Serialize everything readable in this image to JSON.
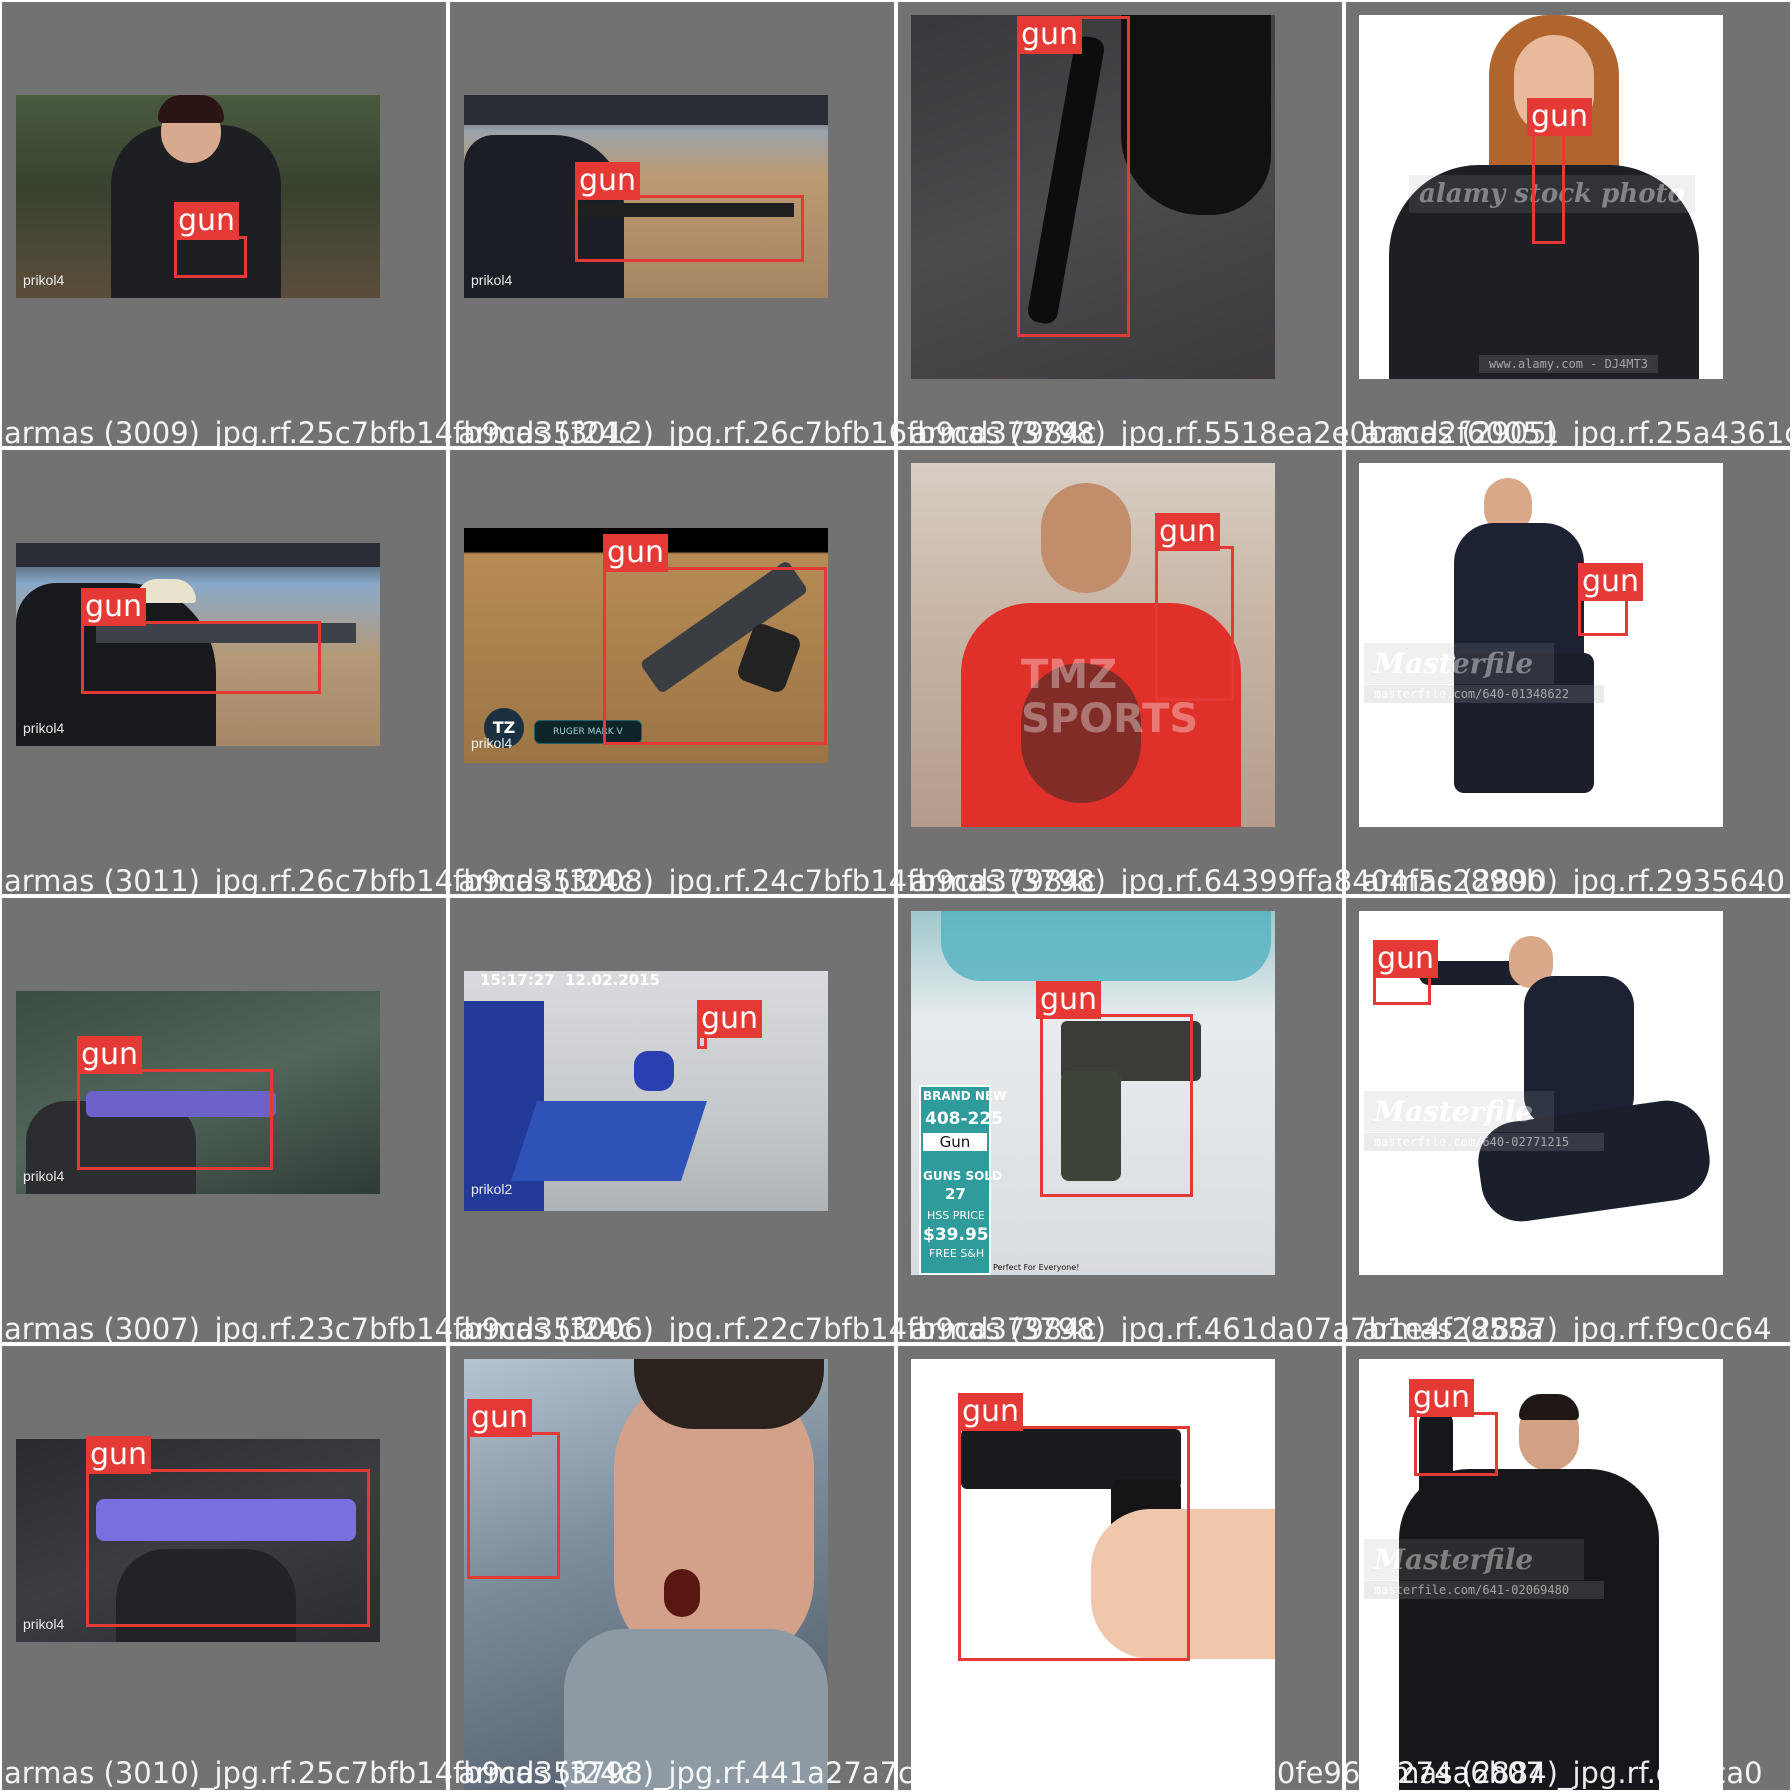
{
  "grid": {
    "rows": 4,
    "cols": 4,
    "label_text": "gun",
    "colors": {
      "tile_bg": "#727272",
      "box": "#e53935",
      "label_bg": "#e53935",
      "label_text": "#ffffff"
    }
  },
  "tiles": [
    {
      "filename": "armas (3009)_jpg.rf.25c7bfb14fb9cd35f24c",
      "watermark": "prikol4"
    },
    {
      "filename": "armas (3012)_jpg.rf.26c7bfb16fb9cd37984c",
      "watermark": "prikol4"
    },
    {
      "filename": "armas (3798)_jpg.rf.5518ea2e0bacd2f60051",
      "watermark": ""
    },
    {
      "filename": "armas (2905)_jpg.rf.25a4361c",
      "watermark": "",
      "stock": "alamy stock photo",
      "stock_id": "www.alamy.com - DJ4MT3"
    },
    {
      "filename": "armas (3011)_jpg.rf.26c7bfb14fb9cd35f24c",
      "watermark": "prikol4"
    },
    {
      "filename": "armas (3008)_jpg.rf.24c7bfb14fb9cd37984c",
      "watermark": "prikol4",
      "badge": "TZ",
      "caption": "RUGER MARK V"
    },
    {
      "filename": "armas (3798)_jpg.rf.64399ffa8404f5c2890b",
      "watermark": "",
      "overlay": "TMZ SPORTS"
    },
    {
      "filename": "armas (2890)_jpg.rf.2935640",
      "watermark": "",
      "stock": "Masterfile",
      "stock_id": "masterfile.com/640-01348622"
    },
    {
      "filename": "armas (3007)_jpg.rf.23c7bfb14fb9cd35f24c",
      "watermark": "prikol4"
    },
    {
      "filename": "armas (3006)_jpg.rf.22c7bfb14fb9cd37984c",
      "watermark": "prikol2",
      "timestamp": "15:17:27  12.02.2015"
    },
    {
      "filename": "armas (3798)_jpg.rf.461da07a7b1e4f2855a",
      "watermark": "",
      "sign": [
        "BRAND NEW",
        "408-225",
        "Gun",
        "GUNS SOLD",
        "27",
        "HSS PRICE",
        "$39.95",
        "FREE S&H",
        "Perfect For Everyone!"
      ]
    },
    {
      "filename": "armas (2887)_jpg.rf.f9c0c64",
      "watermark": "",
      "stock": "Masterfile",
      "stock_id": "masterfile.com/640-02771215"
    },
    {
      "filename": "armas (3010)_jpg.rf.25c7bfb14fb9cd35f24c",
      "watermark": "prikol4"
    },
    {
      "filename": "armas (3798)_jpg.rf.441a27a7c3c7f65a90f2ebd0fe96",
      "watermark": ""
    },
    {
      "filename": "armas (3185)_jpg.rf.2ebd0fe96d0274a6b07",
      "watermark": ""
    },
    {
      "filename": "armas (2884)_jpg.rf.da9ca0",
      "watermark": "",
      "stock": "Masterfile",
      "stock_id": "masterfile.com/641-02069480"
    }
  ]
}
